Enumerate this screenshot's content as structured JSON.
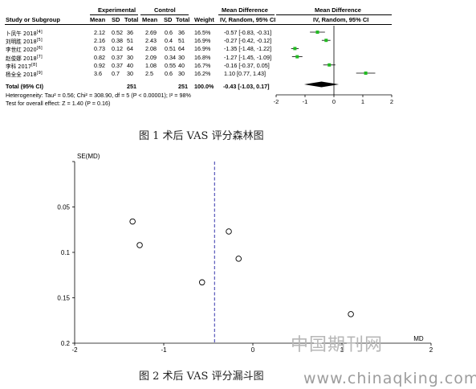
{
  "chart_data": [
    {
      "type": "table",
      "caption": "图 1  术后 VAS 评分森林图",
      "group_headers": {
        "experimental": "Experimental",
        "control": "Control",
        "md_table": "Mean Difference",
        "md_plot": "Mean Difference"
      },
      "columns": [
        "Study or Subgroup",
        "Mean",
        "SD",
        "Total",
        "Mean",
        "SD",
        "Total",
        "Weight",
        "IV, Random, 95% CI",
        "IV, Random, 95% CI"
      ],
      "studies": [
        {
          "name": "卜凤午 2018",
          "ref": "[4]",
          "e_mean": "2.12",
          "e_sd": "0.52",
          "e_total": "36",
          "c_mean": "2.69",
          "c_sd": "0.6",
          "c_total": "36",
          "weight": "16.5%",
          "ci_text": "-0.57 [-0.83, -0.31]",
          "md": -0.57,
          "lo": -0.83,
          "hi": -0.31
        },
        {
          "name": "刘明胜 2018",
          "ref": "[5]",
          "e_mean": "2.16",
          "e_sd": "0.38",
          "e_total": "51",
          "c_mean": "2.43",
          "c_sd": "0.4",
          "c_total": "51",
          "weight": "16.9%",
          "ci_text": "-0.27 [-0.42, -0.12]",
          "md": -0.27,
          "lo": -0.42,
          "hi": -0.12
        },
        {
          "name": "李世红 2020",
          "ref": "[6]",
          "e_mean": "0.73",
          "e_sd": "0.12",
          "e_total": "64",
          "c_mean": "2.08",
          "c_sd": "0.51",
          "c_total": "64",
          "weight": "16.9%",
          "ci_text": "-1.35 [-1.48, -1.22]",
          "md": -1.35,
          "lo": -1.48,
          "hi": -1.22
        },
        {
          "name": "赵俊娜 2018",
          "ref": "[7]",
          "e_mean": "0.82",
          "e_sd": "0.37",
          "e_total": "30",
          "c_mean": "2.09",
          "c_sd": "0.34",
          "c_total": "30",
          "weight": "16.8%",
          "ci_text": "-1.27 [-1.45, -1.09]",
          "md": -1.27,
          "lo": -1.45,
          "hi": -1.09
        },
        {
          "name": "李科 2017",
          "ref": "[8]",
          "e_mean": "0.92",
          "e_sd": "0.37",
          "e_total": "40",
          "c_mean": "1.08",
          "c_sd": "0.55",
          "c_total": "40",
          "weight": "16.7%",
          "ci_text": "-0.16 [-0.37, 0.05]",
          "md": -0.16,
          "lo": -0.37,
          "hi": 0.05
        },
        {
          "name": "杨全全 2018",
          "ref": "[9]",
          "e_mean": "3.6",
          "e_sd": "0.7",
          "e_total": "30",
          "c_mean": "2.5",
          "c_sd": "0.6",
          "c_total": "30",
          "weight": "16.2%",
          "ci_text": "1.10 [0.77, 1.43]",
          "md": 1.1,
          "lo": 0.77,
          "hi": 1.43
        }
      ],
      "total": {
        "label": "Total (95% CI)",
        "e_total": "251",
        "c_total": "251",
        "weight": "100.0%",
        "ci_text": "-0.43 [-1.03, 0.17]",
        "md": -0.43,
        "lo": -1.03,
        "hi": 0.17
      },
      "heterogeneity": "Heterogeneity: Tau² = 0.56; Chi² = 308.90, df = 5 (P < 0.00001); I² = 98%",
      "overall_effect": "Test for overall effect: Z = 1.40 (P = 0.16)",
      "xlim": [
        -2,
        2
      ],
      "xticks": [
        "-2",
        "-1",
        "0",
        "1",
        "2"
      ],
      "marker_color": "#22bb22"
    },
    {
      "type": "scatter",
      "caption": "图 2  术后 VAS 评分漏斗图",
      "ylabel": "SE(MD)",
      "xlabel": "MD",
      "xlim": [
        -2,
        2
      ],
      "ylim": [
        0,
        0.2
      ],
      "y_reversed": true,
      "xticks": [
        "-2",
        "-1",
        "0",
        "1",
        "2"
      ],
      "yticks": [
        "0",
        "0.05",
        "0.1",
        "0.15",
        "0.2"
      ],
      "pooled_md": -0.43,
      "pooled_line_color": "#3333aa",
      "points": [
        {
          "x": -1.35,
          "y": 0.066
        },
        {
          "x": -1.27,
          "y": 0.092
        },
        {
          "x": -0.57,
          "y": 0.133
        },
        {
          "x": -0.27,
          "y": 0.077
        },
        {
          "x": -0.16,
          "y": 0.107
        },
        {
          "x": 1.1,
          "y": 0.168
        }
      ]
    }
  ],
  "watermark": {
    "cn": "中国期刊网",
    "url": "www.chinaqking.com"
  }
}
